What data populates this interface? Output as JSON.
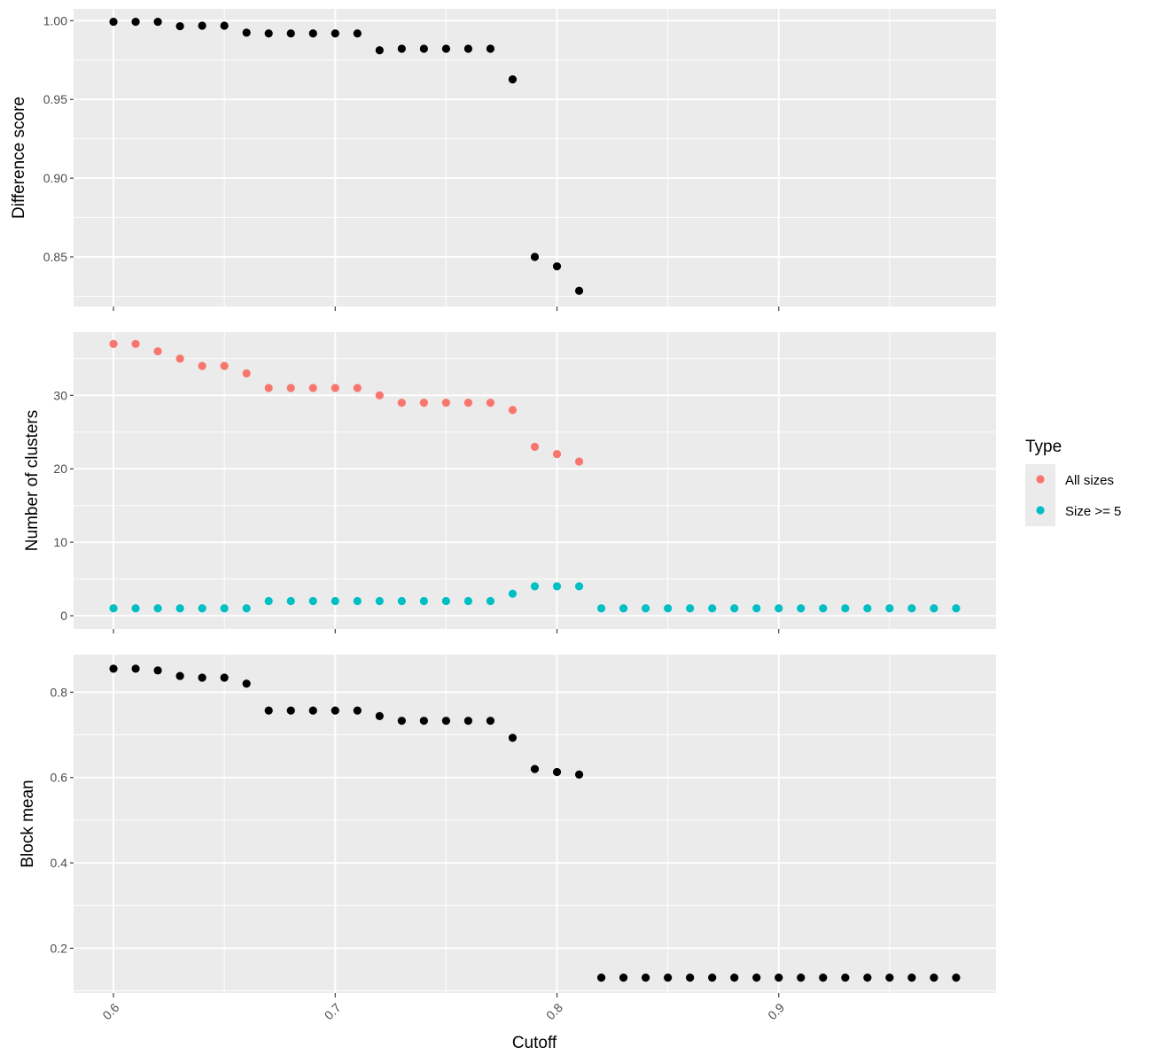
{
  "chart_data": {
    "type": "scatter",
    "xlabel": "Cutoff",
    "x_ticks": [
      "0.6",
      "0.7",
      "0.8",
      "0.9"
    ],
    "x_tick_values": [
      0.6,
      0.7,
      0.8,
      0.9
    ],
    "xlim": [
      0.582,
      0.998
    ],
    "grid": true,
    "panels": [
      {
        "ylabel": "Difference score",
        "ylim": [
          0.8185,
          1.0075
        ],
        "y_ticks": [
          "0.85",
          "0.90",
          "0.95",
          "1.00"
        ],
        "y_tick_values": [
          0.85,
          0.9,
          0.95,
          1.0
        ],
        "series": [
          {
            "color": "#000000",
            "x": [
              0.6,
              0.61,
              0.62,
              0.63,
              0.64,
              0.65,
              0.66,
              0.67,
              0.68,
              0.69,
              0.7,
              0.71,
              0.72,
              0.73,
              0.74,
              0.75,
              0.76,
              0.77,
              0.78,
              0.79,
              0.8,
              0.81
            ],
            "y": [
              0.9993,
              0.9993,
              0.9993,
              0.9965,
              0.9968,
              0.9968,
              0.9924,
              0.9919,
              0.9919,
              0.9919,
              0.9919,
              0.9919,
              0.9812,
              0.9822,
              0.9822,
              0.9822,
              0.9822,
              0.9822,
              0.9627,
              0.85,
              0.844,
              0.8285
            ]
          }
        ]
      },
      {
        "ylabel": "Number of clusters",
        "ylim": [
          -1.8,
          38.6
        ],
        "y_ticks": [
          "0",
          "10",
          "20",
          "30"
        ],
        "y_tick_values": [
          0,
          10,
          20,
          30
        ],
        "series": [
          {
            "name": "All sizes",
            "color": "#F8766D",
            "x": [
              0.6,
              0.61,
              0.62,
              0.63,
              0.64,
              0.65,
              0.66,
              0.67,
              0.68,
              0.69,
              0.7,
              0.71,
              0.72,
              0.73,
              0.74,
              0.75,
              0.76,
              0.77,
              0.78,
              0.79,
              0.8,
              0.81
            ],
            "y": [
              37,
              37,
              36,
              35,
              34,
              34,
              33,
              31,
              31,
              31,
              31,
              31,
              30,
              29,
              29,
              29,
              29,
              29,
              28,
              23,
              22,
              21
            ]
          },
          {
            "name": "Size >= 5",
            "color": "#00BFC4",
            "x": [
              0.6,
              0.61,
              0.62,
              0.63,
              0.64,
              0.65,
              0.66,
              0.67,
              0.68,
              0.69,
              0.7,
              0.71,
              0.72,
              0.73,
              0.74,
              0.75,
              0.76,
              0.77,
              0.78,
              0.79,
              0.8,
              0.81,
              0.82,
              0.83,
              0.84,
              0.85,
              0.86,
              0.87,
              0.88,
              0.89,
              0.9,
              0.91,
              0.92,
              0.93,
              0.94,
              0.95,
              0.96,
              0.97,
              0.98
            ],
            "y": [
              1,
              1,
              1,
              1,
              1,
              1,
              1,
              2,
              2,
              2,
              2,
              2,
              2,
              2,
              2,
              2,
              2,
              2,
              3,
              4,
              4,
              4,
              1,
              1,
              1,
              1,
              1,
              1,
              1,
              1,
              1,
              1,
              1,
              1,
              1,
              1,
              1,
              1,
              1
            ]
          }
        ]
      },
      {
        "ylabel": "Block mean",
        "ylim": [
          0.095,
          0.888
        ],
        "y_ticks": [
          "0.2",
          "0.4",
          "0.6",
          "0.8"
        ],
        "y_tick_values": [
          0.2,
          0.4,
          0.6,
          0.8
        ],
        "series": [
          {
            "color": "#000000",
            "x": [
              0.6,
              0.61,
              0.62,
              0.63,
              0.64,
              0.65,
              0.66,
              0.67,
              0.68,
              0.69,
              0.7,
              0.71,
              0.72,
              0.73,
              0.74,
              0.75,
              0.76,
              0.77,
              0.78,
              0.79,
              0.8,
              0.81,
              0.82,
              0.83,
              0.84,
              0.85,
              0.86,
              0.87,
              0.88,
              0.89,
              0.9,
              0.91,
              0.92,
              0.93,
              0.94,
              0.95,
              0.96,
              0.97,
              0.98
            ],
            "y": [
              0.855,
              0.855,
              0.851,
              0.838,
              0.834,
              0.834,
              0.82,
              0.757,
              0.757,
              0.757,
              0.757,
              0.757,
              0.744,
              0.733,
              0.733,
              0.733,
              0.733,
              0.733,
              0.693,
              0.62,
              0.613,
              0.607,
              0.131,
              0.131,
              0.131,
              0.131,
              0.131,
              0.131,
              0.131,
              0.131,
              0.131,
              0.131,
              0.131,
              0.131,
              0.131,
              0.131,
              0.131,
              0.131,
              0.131
            ]
          }
        ]
      }
    ],
    "legend": {
      "title": "Type",
      "placement": "right",
      "entries": [
        {
          "label": "All sizes",
          "color": "#F8766D"
        },
        {
          "label": "Size >= 5",
          "color": "#00BFC4"
        }
      ]
    }
  }
}
